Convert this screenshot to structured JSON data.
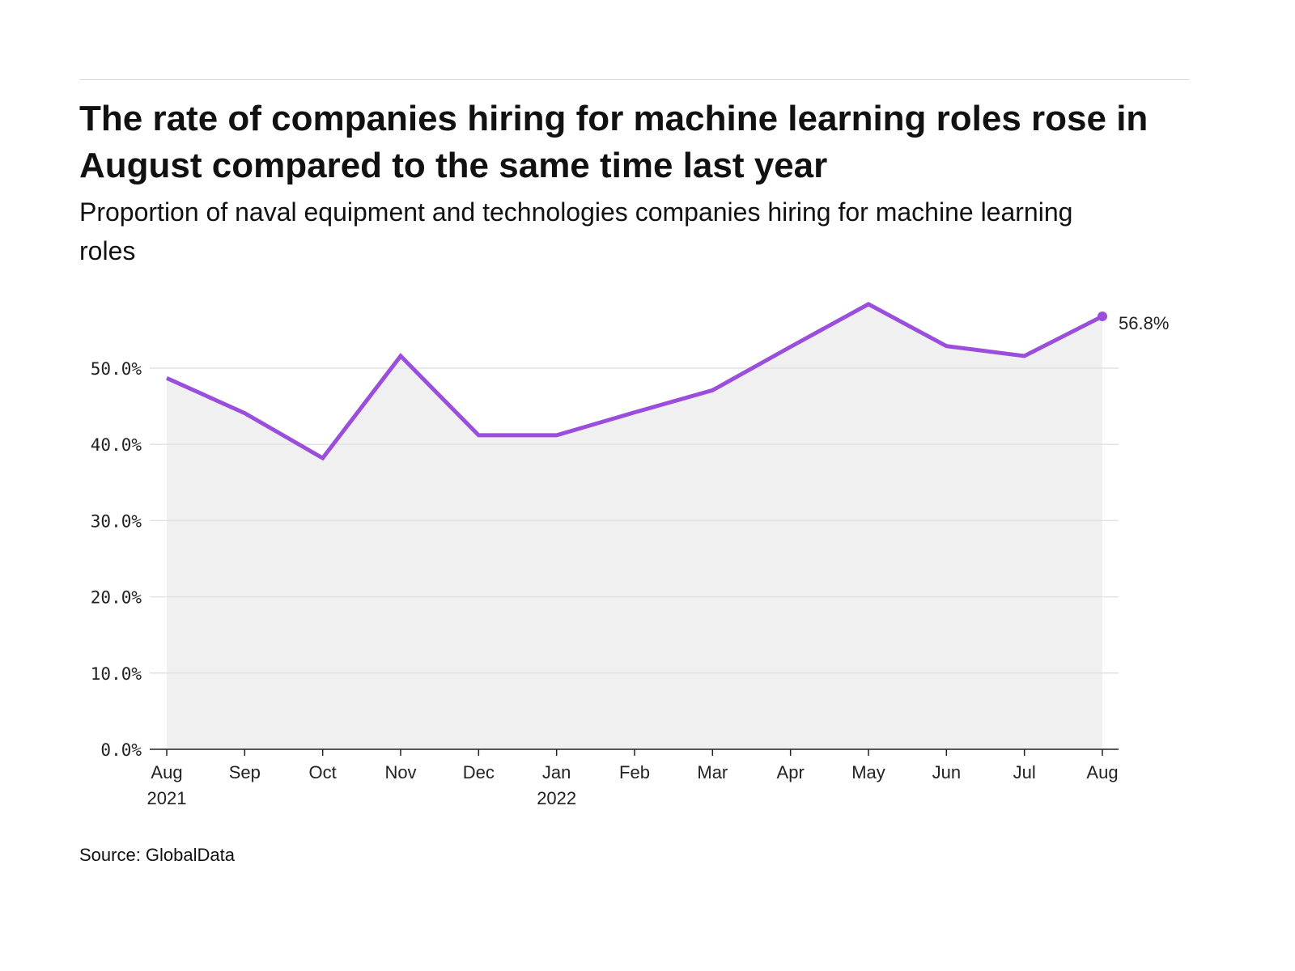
{
  "chart_data": {
    "type": "area",
    "title": "The rate of companies hiring for machine learning roles rose in August compared to the same time last year",
    "subtitle": "Proportion of naval equipment and technologies companies hiring for machine learning roles",
    "source": "Source: GlobalData",
    "categories": [
      "Aug 2021",
      "Sep",
      "Oct",
      "Nov",
      "Dec",
      "Jan 2022",
      "Feb",
      "Mar",
      "Apr",
      "May",
      "Jun",
      "Jul",
      "Aug"
    ],
    "x_tick_labels": [
      [
        "Aug",
        "2021"
      ],
      [
        "Sep"
      ],
      [
        "Oct"
      ],
      [
        "Nov"
      ],
      [
        "Dec"
      ],
      [
        "Jan",
        "2022"
      ],
      [
        "Feb"
      ],
      [
        "Mar"
      ],
      [
        "Apr"
      ],
      [
        "May"
      ],
      [
        "Jun"
      ],
      [
        "Jul"
      ],
      [
        "Aug"
      ]
    ],
    "values": [
      48.7,
      44.1,
      38.2,
      51.6,
      41.2,
      41.2,
      44.2,
      47.1,
      52.8,
      58.4,
      52.9,
      51.6,
      56.8
    ],
    "unit": "%",
    "y_ticks": [
      "0.0%",
      "10.0%",
      "20.0%",
      "30.0%",
      "40.0%",
      "50.0%"
    ],
    "ylim": [
      0,
      60
    ],
    "grid": true,
    "end_label": "56.8%",
    "colors": {
      "line": "#9b4ddc",
      "fill": "#f0f0f0",
      "grid": "#e2e2e2"
    }
  }
}
